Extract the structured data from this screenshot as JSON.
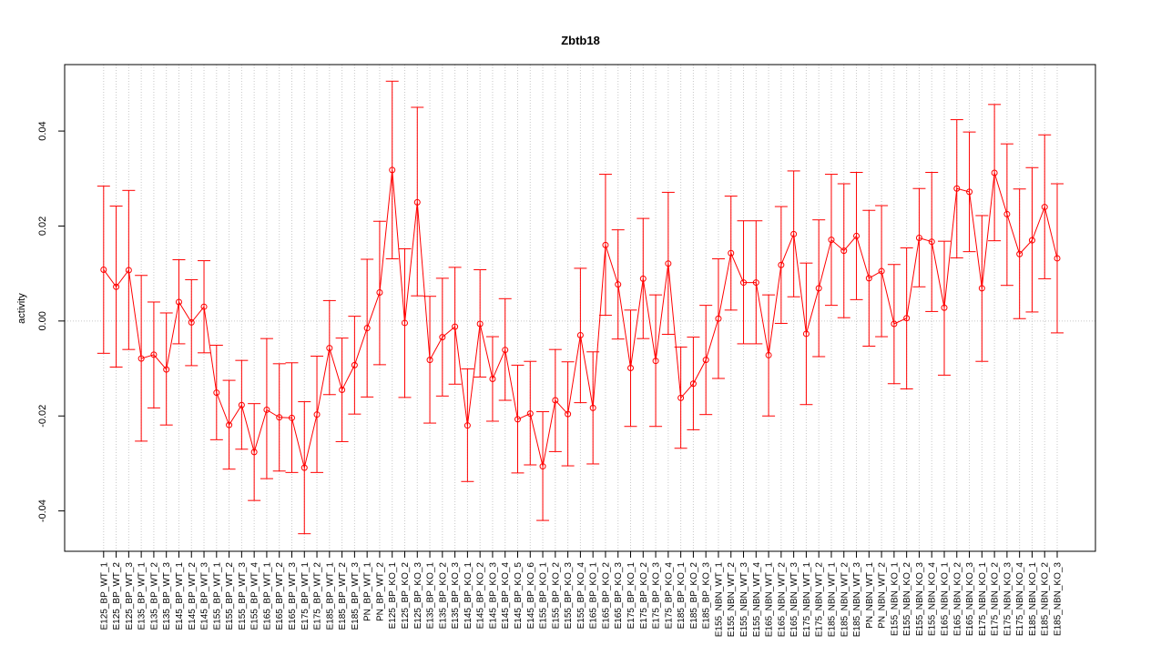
{
  "chart_data": {
    "type": "line",
    "title": "Zbtb18",
    "xlabel": "",
    "ylabel": "activity",
    "ylim": [
      -0.0485,
      0.054
    ],
    "yticks": [
      -0.04,
      -0.02,
      0.0,
      0.02,
      0.04
    ],
    "ytick_labels": [
      "-0.04",
      "-0.02",
      "0.00",
      "0.02",
      "0.04"
    ],
    "grid": true,
    "colors": {
      "series": "#ff0000",
      "grid": "#c8c8c8",
      "axis": "#000000"
    },
    "categories": [
      "E125_BP_WT_1",
      "E125_BP_WT_2",
      "E125_BP_WT_3",
      "E135_BP_WT_1",
      "E135_BP_WT_2",
      "E135_BP_WT_3",
      "E145_BP_WT_1",
      "E145_BP_WT_2",
      "E145_BP_WT_3",
      "E155_BP_WT_1",
      "E155_BP_WT_2",
      "E155_BP_WT_3",
      "E155_BP_WT_4",
      "E165_BP_WT_1",
      "E165_BP_WT_2",
      "E165_BP_WT_3",
      "E175_BP_WT_1",
      "E175_BP_WT_2",
      "E185_BP_WT_1",
      "E185_BP_WT_2",
      "E185_BP_WT_3",
      "PN_BP_WT_1",
      "PN_BP_WT_2",
      "E125_BP_KO_1",
      "E125_BP_KO_2",
      "E125_BP_KO_3",
      "E135_BP_KO_1",
      "E135_BP_KO_2",
      "E135_BP_KO_3",
      "E145_BP_KO_1",
      "E145_BP_KO_2",
      "E145_BP_KO_3",
      "E145_BP_KO_4",
      "E145_BP_KO_5",
      "E145_BP_KO_6",
      "E155_BP_KO_1",
      "E155_BP_KO_2",
      "E155_BP_KO_3",
      "E155_BP_KO_4",
      "E165_BP_KO_1",
      "E165_BP_KO_2",
      "E165_BP_KO_3",
      "E175_BP_KO_1",
      "E175_BP_KO_2",
      "E175_BP_KO_3",
      "E175_BP_KO_4",
      "E185_BP_KO_1",
      "E185_BP_KO_2",
      "E185_BP_KO_3",
      "E155_NBN_WT_1",
      "E155_NBN_WT_2",
      "E155_NBN_WT_3",
      "E155_NBN_WT_4",
      "E165_NBN_WT_1",
      "E165_NBN_WT_2",
      "E165_NBN_WT_3",
      "E175_NBN_WT_1",
      "E175_NBN_WT_2",
      "E185_NBN_WT_1",
      "E185_NBN_WT_2",
      "E185_NBN_WT_3",
      "PN_NBN_WT_1",
      "PN_NBN_WT_2",
      "E155_NBN_KO_1",
      "E155_NBN_KO_2",
      "E155_NBN_KO_3",
      "E155_NBN_KO_4",
      "E165_NBN_KO_1",
      "E165_NBN_KO_2",
      "E165_NBN_KO_3",
      "E175_NBN_KO_1",
      "E175_NBN_KO_2",
      "E175_NBN_KO_3",
      "E175_NBN_KO_4",
      "E185_NBN_KO_1",
      "E185_NBN_KO_2",
      "E185_NBN_KO_3"
    ],
    "series": [
      {
        "values": [
          0.0108,
          0.0072,
          0.0107,
          -0.0079,
          -0.0071,
          -0.0102,
          0.004,
          -0.0003,
          0.003,
          -0.0151,
          -0.0219,
          -0.0177,
          -0.0276,
          -0.0187,
          -0.0203,
          -0.0204,
          -0.0309,
          -0.0197,
          -0.0057,
          -0.0145,
          -0.0093,
          -0.0015,
          0.006,
          0.0318,
          -0.0004,
          0.025,
          -0.0082,
          -0.0034,
          -0.0012,
          -0.022,
          -0.0006,
          -0.0122,
          -0.0061,
          -0.0207,
          -0.0195,
          -0.0306,
          -0.0167,
          -0.0196,
          -0.003,
          -0.0183,
          0.016,
          0.0077,
          -0.0099,
          0.0089,
          -0.0084,
          0.0121,
          -0.0162,
          -0.0132,
          -0.0082,
          0.0005,
          0.0143,
          0.0081,
          0.0081,
          -0.0072,
          0.0118,
          0.0183,
          -0.0027,
          0.0069,
          0.0171,
          0.0148,
          0.0179,
          0.009,
          0.0105,
          -0.0006,
          0.0006,
          0.0175,
          0.0167,
          0.0028,
          0.0279,
          0.0272,
          0.0069,
          0.0312,
          0.0225,
          0.0141,
          0.017,
          0.024,
          0.0132
        ],
        "lower": [
          -0.0068,
          -0.0097,
          -0.006,
          -0.0253,
          -0.0183,
          -0.0219,
          -0.0048,
          -0.0094,
          -0.0067,
          -0.025,
          -0.0312,
          -0.027,
          -0.0378,
          -0.0332,
          -0.0316,
          -0.0319,
          -0.0448,
          -0.0319,
          -0.0155,
          -0.0254,
          -0.0196,
          -0.016,
          -0.0092,
          0.0131,
          -0.0161,
          0.0053,
          -0.0215,
          -0.0158,
          -0.0133,
          -0.0338,
          -0.0118,
          -0.0211,
          -0.0167,
          -0.032,
          -0.0303,
          -0.042,
          -0.0275,
          -0.0305,
          -0.0172,
          -0.0301,
          0.0012,
          -0.0038,
          -0.0222,
          -0.0037,
          -0.0222,
          -0.0028,
          -0.0268,
          -0.0229,
          -0.0197,
          -0.0121,
          0.0023,
          -0.0048,
          -0.0048,
          -0.02,
          -0.0005,
          0.0051,
          -0.0176,
          -0.0075,
          0.0033,
          0.0007,
          0.0045,
          -0.0053,
          -0.0033,
          -0.0132,
          -0.0143,
          0.0072,
          0.002,
          -0.0114,
          0.0133,
          0.0146,
          -0.0085,
          0.0169,
          0.0075,
          0.0005,
          0.0019,
          0.0089,
          -0.0025
        ],
        "upper": [
          0.0284,
          0.0242,
          0.0275,
          0.0096,
          0.004,
          0.0017,
          0.0129,
          0.0087,
          0.0127,
          -0.0051,
          -0.0125,
          -0.0083,
          -0.0174,
          -0.0037,
          -0.009,
          -0.0088,
          -0.017,
          -0.0074,
          0.0043,
          -0.0036,
          0.001,
          0.013,
          0.021,
          0.0505,
          0.0152,
          0.045,
          0.0052,
          0.009,
          0.0113,
          -0.0101,
          0.0108,
          -0.0033,
          0.0047,
          -0.0093,
          -0.0085,
          -0.0191,
          -0.006,
          -0.0086,
          0.0111,
          -0.0065,
          0.0309,
          0.0192,
          0.0023,
          0.0216,
          0.0055,
          0.0271,
          -0.0055,
          -0.0034,
          0.0033,
          0.0131,
          0.0263,
          0.0211,
          0.0211,
          0.0055,
          0.0241,
          0.0316,
          0.0122,
          0.0213,
          0.0309,
          0.0289,
          0.0313,
          0.0233,
          0.0243,
          0.0119,
          0.0154,
          0.0279,
          0.0313,
          0.0168,
          0.0424,
          0.0398,
          0.0222,
          0.0456,
          0.0373,
          0.0278,
          0.0323,
          0.0392,
          0.0289
        ]
      }
    ]
  }
}
